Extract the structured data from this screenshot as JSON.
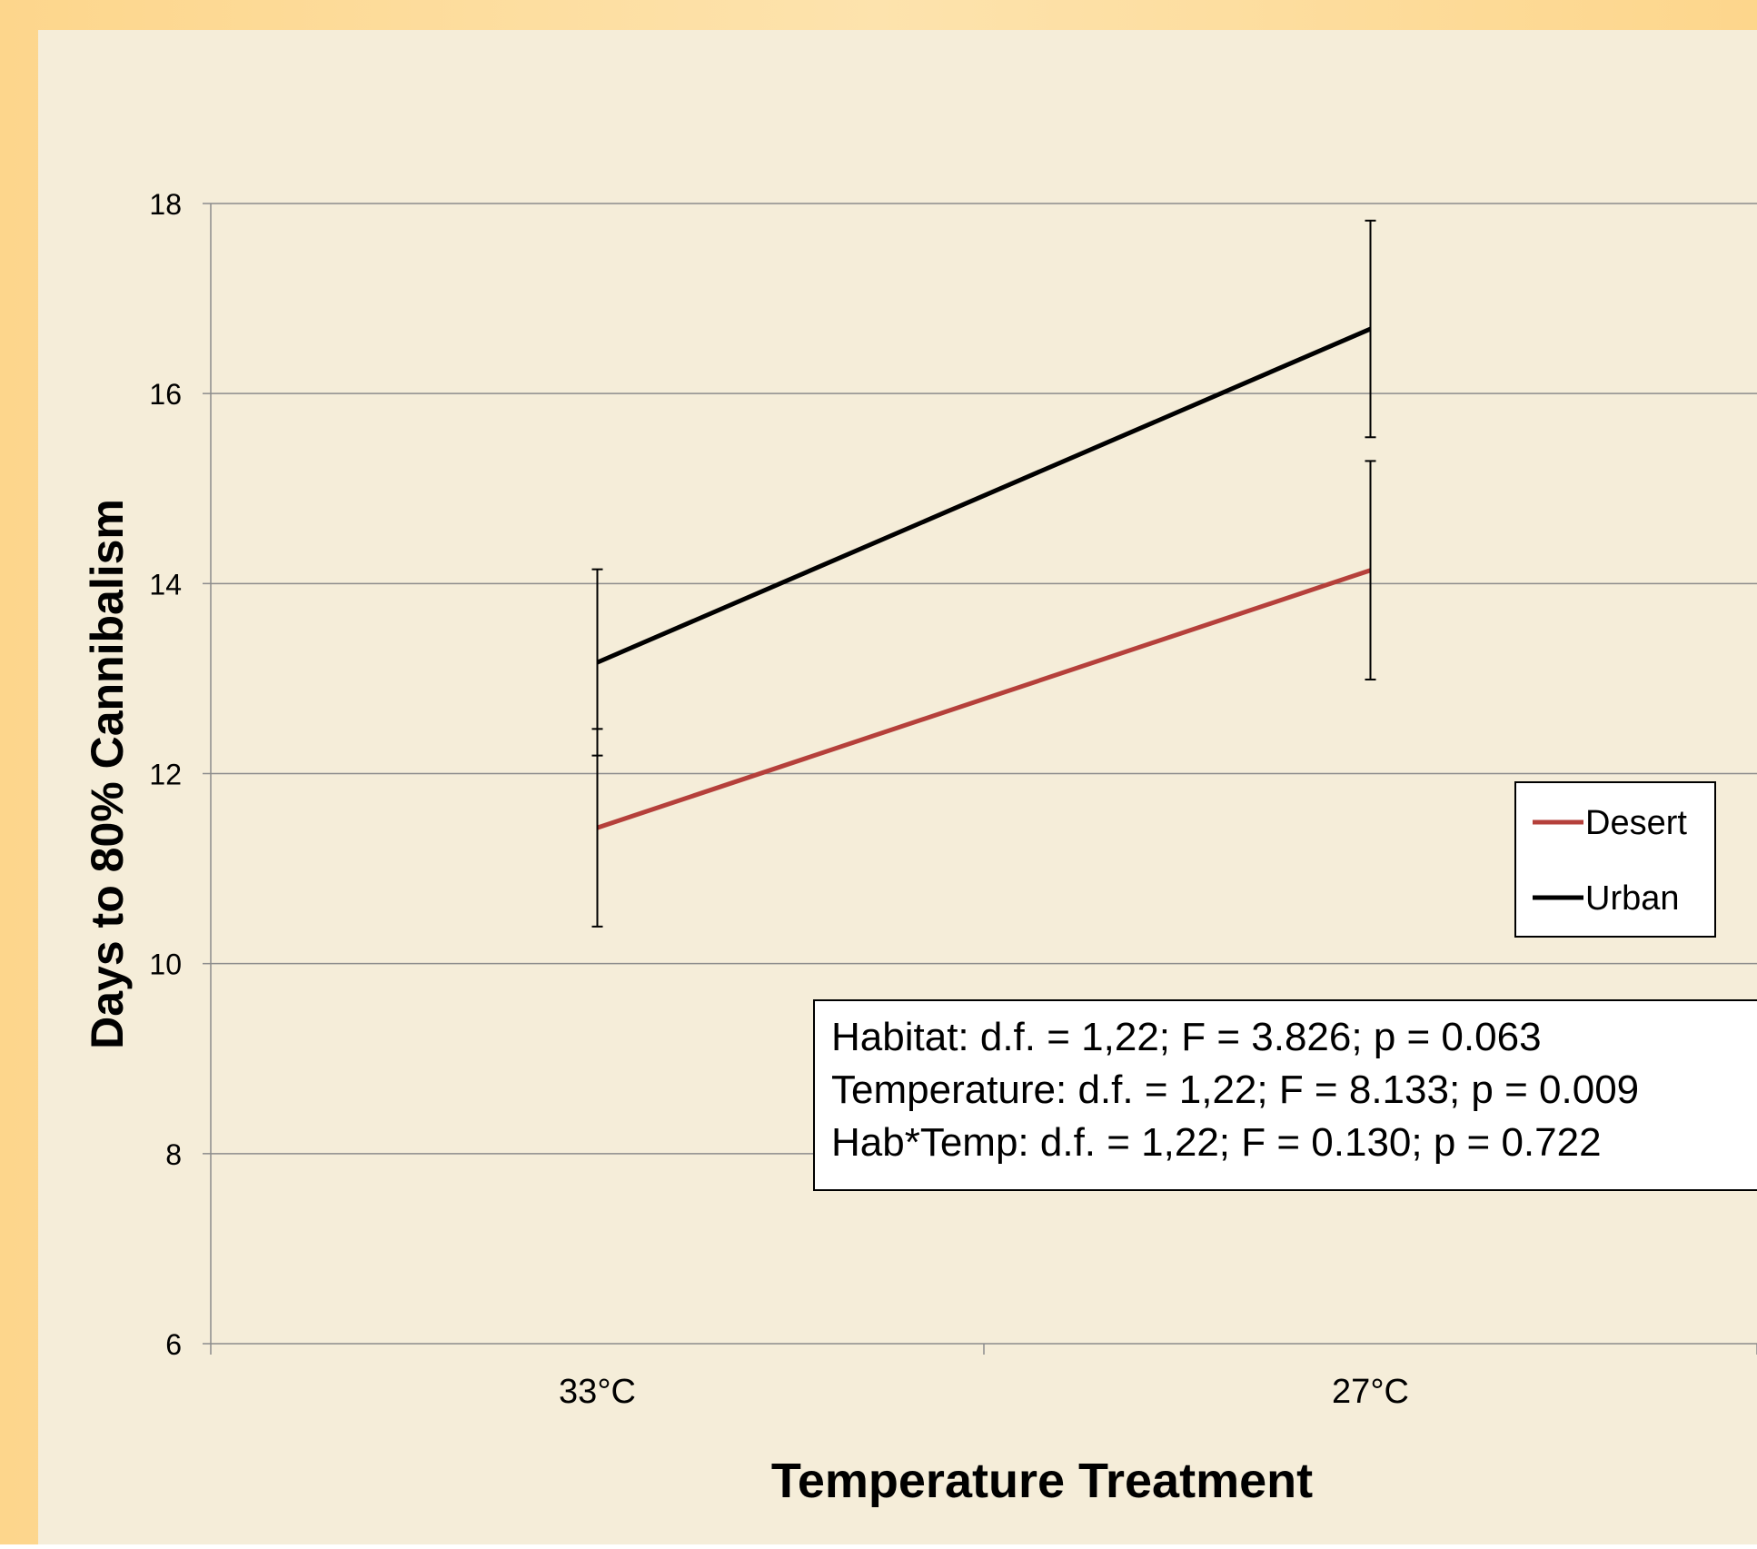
{
  "chart_data": {
    "type": "line",
    "title": "",
    "xlabel": "Temperature Treatment",
    "ylabel": "Days to 80% Cannibalism",
    "categories": [
      "33°C",
      "27°C"
    ],
    "ylim": [
      6,
      18
    ],
    "yticks": [
      6,
      8,
      10,
      12,
      14,
      16,
      18
    ],
    "grid": true,
    "legend_position": "right",
    "series": [
      {
        "name": "Desert",
        "color": "#b5403b",
        "values": [
          11.43,
          14.14
        ],
        "error_low": [
          10.39,
          12.99
        ],
        "error_high": [
          12.47,
          15.29
        ]
      },
      {
        "name": "Urban",
        "color": "#000000",
        "values": [
          13.17,
          16.68
        ],
        "error_low": [
          12.19,
          15.54
        ],
        "error_high": [
          14.15,
          17.82
        ]
      }
    ],
    "annotations": [
      "Habitat: d.f. = 1,22; F = 3.826; p = 0.063",
      "Temperature: d.f. = 1,22; F = 8.133; p = 0.009",
      "Hab*Temp: d.f. = 1,22; F = 0.130; p = 0.722"
    ]
  },
  "colors": {
    "outer_background": "#fddc99",
    "plot_background": "#f5edd9",
    "gridline": "#8c8c8c",
    "axis": "#8c8c8c"
  }
}
